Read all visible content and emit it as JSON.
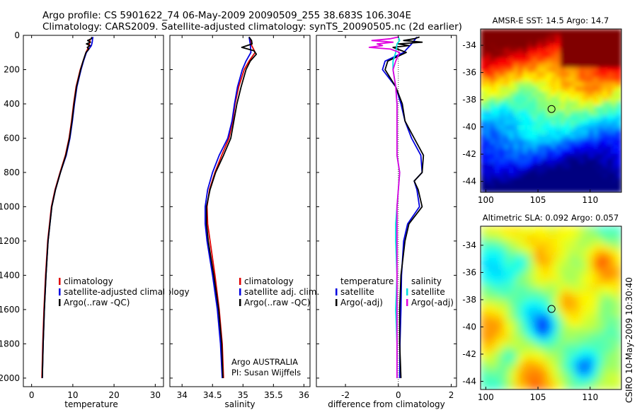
{
  "header": {
    "line1": "Argo profile: CS 5901622_74 06-May-2009 20090509_255 38.683S 106.304E",
    "line2": "Climatology: CARS2009. Satellite-adjusted climatology: synTS_20090505.nc (2d earlier)"
  },
  "colors": {
    "red": "#e00000",
    "blue": "#0000e0",
    "black": "#000000",
    "magenta": "#e000e0",
    "cyan": "#00e0e0"
  },
  "chart_data": [
    {
      "type": "line",
      "id": "temperature",
      "xlabel": "temperature",
      "ylabel": "",
      "xlim": [
        -2,
        32
      ],
      "ylim": [
        0,
        2050
      ],
      "xticks": [
        0,
        10,
        20,
        30
      ],
      "yticks": [
        0,
        200,
        400,
        600,
        800,
        1000,
        1200,
        1400,
        1600,
        1800,
        2000
      ],
      "legend_position": "lower-right",
      "legend": [
        "climatology",
        "satellite-adjusted climatology",
        "Argo(..raw -QC)"
      ],
      "series": [
        {
          "name": "climatology",
          "color": "red",
          "depth": [
            20,
            40,
            60,
            80,
            100,
            150,
            200,
            300,
            400,
            500,
            600,
            700,
            800,
            900,
            1000,
            1200,
            1400,
            1600,
            1800,
            2000
          ],
          "values": [
            14.2,
            14.1,
            13.9,
            13.6,
            13.2,
            12.5,
            11.8,
            10.8,
            10.2,
            9.7,
            9.1,
            8.2,
            6.9,
            5.7,
            4.8,
            3.9,
            3.4,
            3.0,
            2.7,
            2.5
          ]
        },
        {
          "name": "satellite-adjusted climatology",
          "color": "blue",
          "depth": [
            10,
            20,
            40,
            60,
            80,
            100,
            150,
            200,
            300,
            400,
            500,
            600,
            700,
            800,
            900,
            1000,
            1200,
            1400,
            1600,
            1800,
            2000
          ],
          "values": [
            14.9,
            14.8,
            14.7,
            14.5,
            13.9,
            13.3,
            12.6,
            12.0,
            11.0,
            10.4,
            9.9,
            9.3,
            8.4,
            7.0,
            5.8,
            4.9,
            4.0,
            3.5,
            3.1,
            2.8,
            2.6
          ]
        },
        {
          "name": "Argo(..raw -QC)",
          "color": "black",
          "depth": [
            10,
            20,
            30,
            40,
            50,
            60,
            70,
            80,
            100,
            150,
            200,
            300,
            400,
            500,
            600,
            700,
            800,
            900,
            1000,
            1200,
            1400,
            1600,
            1800,
            2000
          ],
          "values": [
            14.6,
            14.5,
            13.6,
            14.3,
            13.3,
            14.2,
            13.5,
            13.9,
            13.2,
            12.5,
            11.9,
            10.9,
            10.3,
            9.8,
            9.2,
            8.3,
            7.0,
            5.8,
            4.9,
            4.0,
            3.5,
            3.1,
            2.8,
            2.6
          ]
        }
      ]
    },
    {
      "type": "line",
      "id": "salinity",
      "xlabel": "salinity",
      "ylabel": "",
      "xlim": [
        33.8,
        36.1
      ],
      "ylim": [
        0,
        2050
      ],
      "xticks": [
        34,
        34.5,
        35,
        35.5,
        36
      ],
      "yticks": [
        0,
        200,
        400,
        600,
        800,
        1000,
        1200,
        1400,
        1600,
        1800,
        2000
      ],
      "legend_position": "lower-right",
      "legend": [
        "climatology",
        "satellite adj. clim.",
        "Argo(..raw -QC)"
      ],
      "annotation": [
        "Argo AUSTRALIA",
        "PI: Susan Wijffels"
      ],
      "series": [
        {
          "name": "climatology",
          "color": "red",
          "depth": [
            20,
            50,
            100,
            150,
            200,
            300,
            400,
            500,
            600,
            700,
            800,
            900,
            1000,
            1100,
            1200,
            1400,
            1600,
            1800,
            2000
          ],
          "values": [
            35.12,
            35.13,
            35.2,
            35.1,
            35.02,
            34.93,
            34.87,
            34.83,
            34.77,
            34.65,
            34.54,
            34.45,
            34.41,
            34.42,
            34.46,
            34.54,
            34.61,
            34.66,
            34.68
          ]
        },
        {
          "name": "satellite adj. clim.",
          "color": "blue",
          "depth": [
            10,
            50,
            100,
            150,
            200,
            300,
            400,
            500,
            600,
            700,
            800,
            900,
            1000,
            1100,
            1200,
            1400,
            1600,
            1800,
            2000
          ],
          "values": [
            35.1,
            35.12,
            35.13,
            35.05,
            34.99,
            34.91,
            34.86,
            34.82,
            34.75,
            34.61,
            34.5,
            34.42,
            34.38,
            34.38,
            34.41,
            34.5,
            34.58,
            34.63,
            34.66
          ]
        },
        {
          "name": "Argo(..raw -QC)",
          "color": "black",
          "depth": [
            10,
            30,
            50,
            70,
            90,
            110,
            150,
            200,
            300,
            400,
            500,
            600,
            700,
            800,
            900,
            1000,
            1100,
            1200,
            1400,
            1600,
            1800,
            2000
          ],
          "values": [
            35.1,
            35.14,
            35.15,
            34.98,
            35.18,
            35.22,
            35.12,
            35.05,
            34.97,
            34.9,
            34.85,
            34.8,
            34.68,
            34.55,
            34.46,
            34.4,
            34.4,
            34.43,
            34.52,
            34.6,
            34.65,
            34.67
          ]
        }
      ]
    },
    {
      "type": "line",
      "id": "difference",
      "xlabel": "difference from climatology",
      "ylabel": "",
      "xlim": [
        -3.1,
        2.2
      ],
      "ylim": [
        0,
        2050
      ],
      "xticks": [
        -2,
        0,
        2
      ],
      "yticks": [
        0,
        200,
        400,
        600,
        800,
        1000,
        1200,
        1400,
        1600,
        1800,
        2000
      ],
      "legend_position": "lower-center",
      "legend": [
        "temperature",
        "satellite",
        "Argo(-adj)",
        "salinity",
        "satellite",
        "Argo(-adj)"
      ],
      "series": [
        {
          "name": "temperature satellite",
          "color": "blue",
          "depth": [
            10,
            50,
            100,
            150,
            200,
            300,
            400,
            500,
            600,
            700,
            800,
            850,
            900,
            1000,
            1100,
            1200,
            1400,
            1600,
            1800,
            2000
          ],
          "values": [
            0.7,
            0.5,
            0.2,
            -0.5,
            -0.6,
            -0.1,
            0.1,
            0.25,
            0.5,
            0.85,
            0.9,
            0.6,
            0.7,
            0.8,
            0.35,
            0.2,
            0.12,
            0.1,
            0.06,
            0.05
          ]
        },
        {
          "name": "temperature Argo(-adj)",
          "color": "black",
          "depth": [
            10,
            20,
            30,
            40,
            50,
            60,
            70,
            100,
            150,
            200,
            300,
            400,
            500,
            600,
            700,
            800,
            850,
            900,
            1000,
            1100,
            1200,
            1400,
            1600,
            1800,
            2000
          ],
          "values": [
            0.8,
            0.6,
            0.2,
            0.9,
            0.0,
            0.4,
            -0.2,
            0.3,
            -0.4,
            -0.5,
            -0.1,
            0.15,
            0.25,
            0.6,
            0.95,
            0.9,
            0.6,
            0.75,
            0.9,
            0.4,
            0.25,
            0.1,
            0.05,
            0.05,
            0.1
          ]
        },
        {
          "name": "salinity satellite",
          "color": "cyan",
          "depth": [
            10,
            30,
            50,
            100,
            150,
            200,
            300,
            400,
            500,
            600,
            700,
            800,
            900,
            1000,
            1100,
            1200,
            1400,
            1600,
            1800,
            2000
          ],
          "values": [
            0.0,
            0.05,
            -0.05,
            -0.1,
            -0.2,
            -0.2,
            -0.1,
            -0.05,
            -0.05,
            -0.05,
            -0.05,
            0.05,
            0.0,
            -0.05,
            -0.1,
            -0.1,
            -0.05,
            -0.1,
            -0.05,
            -0.05
          ]
        },
        {
          "name": "salinity Argo(-adj)",
          "color": "magenta",
          "depth": [
            10,
            20,
            30,
            40,
            50,
            60,
            70,
            80,
            100,
            150,
            200,
            300,
            400,
            500,
            600,
            700,
            800,
            900,
            1000,
            1100,
            1200,
            1400,
            1600,
            1800,
            2000
          ],
          "values": [
            0.0,
            -0.3,
            -1.0,
            -0.2,
            -0.8,
            -0.6,
            -1.1,
            -0.3,
            0.05,
            -0.1,
            -0.2,
            -0.1,
            -0.05,
            -0.05,
            -0.05,
            -0.05,
            0.05,
            0.0,
            -0.05,
            -0.05,
            -0.05,
            -0.05,
            -0.05,
            -0.05,
            -0.05
          ]
        }
      ]
    },
    {
      "type": "heatmap",
      "id": "sst",
      "title": "AMSR-E SST: 14.5 Argo: 14.7",
      "xlim": [
        99.5,
        113
      ],
      "ylim": [
        -44.8,
        -32.8
      ],
      "xticks": [
        100,
        105,
        110
      ],
      "xtick_labels": [
        "100",
        "105",
        "110"
      ],
      "yticks": [
        -34,
        -36,
        -38,
        -40,
        -42,
        -44
      ],
      "marker": {
        "lon": 106.3,
        "lat": -38.68
      },
      "colormap": "jet"
    },
    {
      "type": "heatmap",
      "id": "sla",
      "title": "Altimetric SLA: 0.092 Argo: 0.057",
      "xlim": [
        99.5,
        113
      ],
      "ylim": [
        -44.6,
        -32.6
      ],
      "xticks": [
        100,
        105,
        110
      ],
      "xtick_labels": [
        "100",
        "105",
        "110"
      ],
      "yticks": [
        -34,
        -36,
        -38,
        -40,
        -42,
        -44
      ],
      "marker": {
        "lon": 106.3,
        "lat": -38.68
      },
      "colormap": "jet",
      "side_label": "CSIRO 10-May-2009 10:30:40"
    }
  ]
}
